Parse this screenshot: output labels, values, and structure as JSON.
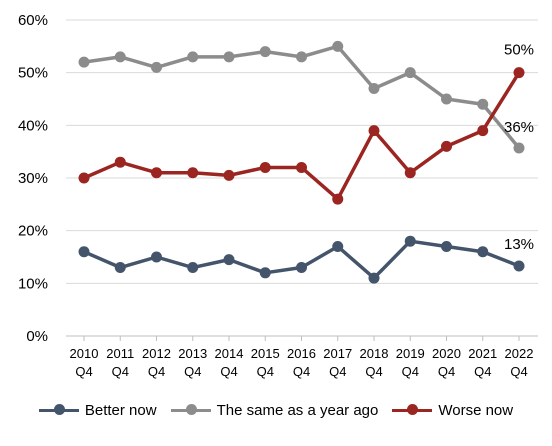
{
  "chart_data": {
    "type": "line",
    "categories": [
      [
        "2010",
        "Q4"
      ],
      [
        "2011",
        "Q4"
      ],
      [
        "2012",
        "Q4"
      ],
      [
        "2013",
        "Q4"
      ],
      [
        "2014",
        "Q4"
      ],
      [
        "2015",
        "Q4"
      ],
      [
        "2016",
        "Q4"
      ],
      [
        "2017",
        "Q4"
      ],
      [
        "2018",
        "Q4"
      ],
      [
        "2019",
        "Q4"
      ],
      [
        "2020",
        "Q4"
      ],
      [
        "2021",
        "Q4"
      ],
      [
        "2022",
        "Q4"
      ]
    ],
    "ylim": [
      0,
      60
    ],
    "yticks": [
      "0%",
      "10%",
      "20%",
      "30%",
      "40%",
      "50%",
      "60%"
    ],
    "ytick_values": [
      0,
      10,
      20,
      30,
      40,
      50,
      60
    ],
    "grid": "horizontal",
    "legend_position": "bottom",
    "series": [
      {
        "name": "Better now",
        "color": "#44546A",
        "values": [
          16,
          13,
          15,
          13,
          14.5,
          12,
          13,
          17,
          11,
          18,
          17,
          16,
          13.3
        ],
        "end_label": "13%"
      },
      {
        "name": "The same as a year ago",
        "color": "#8C8C8C",
        "values": [
          52,
          53,
          51,
          53,
          53,
          54,
          53,
          55,
          47,
          50,
          45,
          44,
          35.7
        ],
        "end_label": "36%"
      },
      {
        "name": "Worse now",
        "color": "#9B2520",
        "values": [
          30,
          33,
          31,
          31,
          30.5,
          32,
          32,
          26,
          39,
          31,
          36,
          39,
          50
        ],
        "end_label": "50%"
      }
    ]
  }
}
